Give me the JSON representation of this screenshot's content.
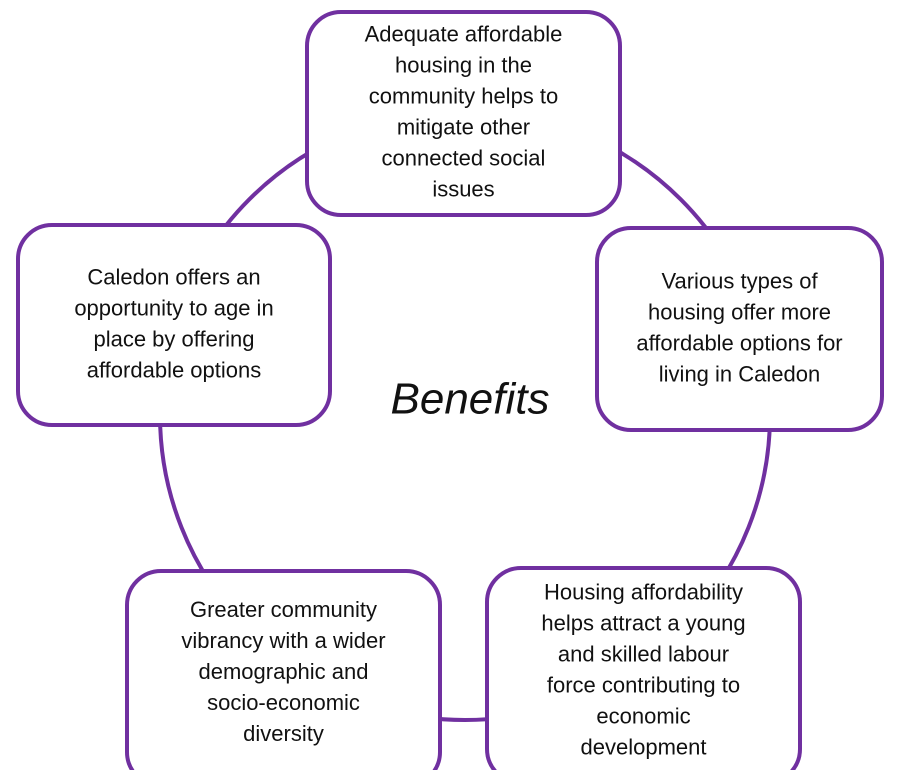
{
  "center_label": "Benefits",
  "nodes": [
    {
      "lines": [
        "Adequate affordable",
        "housing in the",
        "community helps to",
        "mitigate other",
        "connected social",
        "issues"
      ]
    },
    {
      "lines": [
        "Various types of",
        "housing offer more",
        "affordable options for",
        "living in Caledon"
      ]
    },
    {
      "lines": [
        "Housing affordability",
        "helps attract a young",
        "and skilled labour",
        "force contributing to",
        "economic",
        "development"
      ]
    },
    {
      "lines": [
        "Greater community",
        "vibrancy with a wider",
        "demographic and",
        "socio-economic",
        "diversity"
      ]
    },
    {
      "lines": [
        "Caledon offers an",
        "opportunity to age in",
        "place by offering",
        "affordable options"
      ]
    }
  ]
}
